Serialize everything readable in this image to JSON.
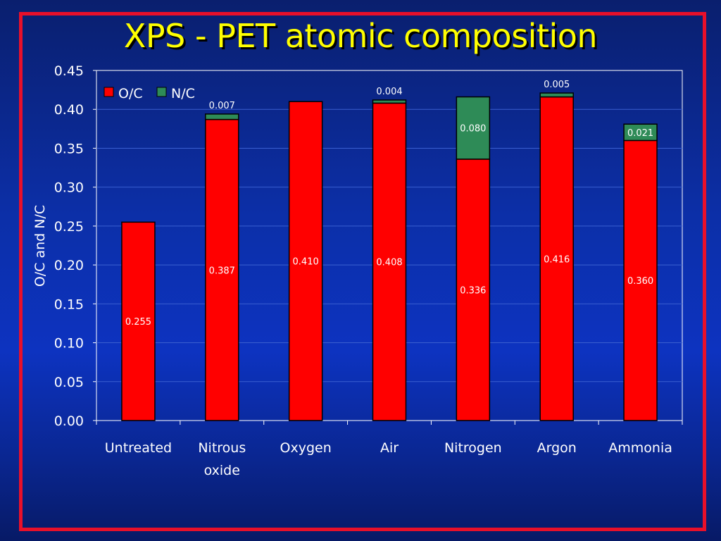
{
  "title": "XPS - PET atomic composition",
  "chart_data": {
    "type": "bar",
    "stacked": true,
    "categories": [
      "Untreated",
      "Nitrous oxide",
      "Oxygen",
      "Air",
      "Nitrogen",
      "Argon",
      "Ammonia"
    ],
    "category_lines": [
      [
        "Untreated"
      ],
      [
        "Nitrous",
        "oxide"
      ],
      [
        "Oxygen"
      ],
      [
        "Air"
      ],
      [
        "Nitrogen"
      ],
      [
        "Argon"
      ],
      [
        "Ammonia"
      ]
    ],
    "series": [
      {
        "name": "O/C",
        "color": "#ff0000",
        "values": [
          0.255,
          0.387,
          0.41,
          0.408,
          0.336,
          0.416,
          0.36
        ],
        "labels": [
          "0.255",
          "0.387",
          "0.410",
          "0.408",
          "0.336",
          "0.416",
          "0.360"
        ]
      },
      {
        "name": "N/C",
        "color": "#2e8b57",
        "values": [
          0,
          0.007,
          0,
          0.004,
          0.08,
          0.005,
          0.021
        ],
        "labels": [
          "",
          "0.007",
          "",
          "0.004",
          "0.080",
          "0.005",
          "0.021"
        ]
      }
    ],
    "ylabel": "O/C and N/C",
    "ylim": [
      0,
      0.45
    ],
    "yticks": [
      "0.00",
      "0.05",
      "0.10",
      "0.15",
      "0.20",
      "0.25",
      "0.30",
      "0.35",
      "0.40",
      "0.45"
    ],
    "grid": true,
    "legend": "top-left"
  }
}
